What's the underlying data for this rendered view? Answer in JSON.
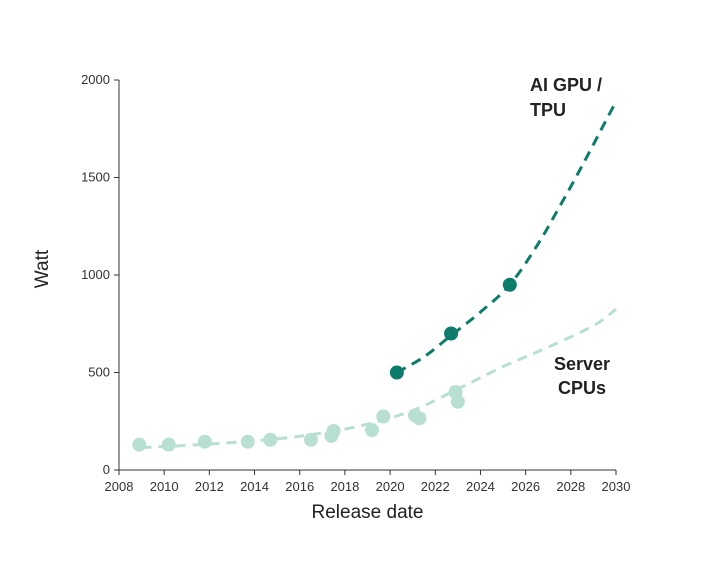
{
  "chart_data": {
    "type": "scatter",
    "title": "",
    "xlabel": "Release date",
    "ylabel": "Watt",
    "xlim": [
      2008,
      2030
    ],
    "ylim": [
      0,
      2000
    ],
    "x_ticks": [
      2008,
      2010,
      2012,
      2014,
      2016,
      2018,
      2020,
      2022,
      2024,
      2026,
      2028,
      2030
    ],
    "y_ticks": [
      0,
      500,
      1000,
      1500,
      2000
    ],
    "grid": false,
    "series": [
      {
        "name": "Server CPUs",
        "label_lines": [
          "Server",
          "CPUs"
        ],
        "color": "#b8e0d2",
        "points": [
          [
            2008.9,
            130
          ],
          [
            2010.2,
            130
          ],
          [
            2011.8,
            145
          ],
          [
            2013.7,
            145
          ],
          [
            2014.7,
            155
          ],
          [
            2016.5,
            155
          ],
          [
            2017.4,
            175
          ],
          [
            2017.5,
            200
          ],
          [
            2019.2,
            205
          ],
          [
            2019.7,
            275
          ],
          [
            2021.1,
            280
          ],
          [
            2021.3,
            265
          ],
          [
            2022.9,
            400
          ],
          [
            2023.0,
            350
          ]
        ],
        "trend": [
          [
            2009.0,
            115
          ],
          [
            2012.0,
            133
          ],
          [
            2015.0,
            160
          ],
          [
            2017.0,
            190
          ],
          [
            2019.0,
            235
          ],
          [
            2021.0,
            305
          ],
          [
            2023.0,
            415
          ],
          [
            2025.0,
            530
          ],
          [
            2027.0,
            630
          ],
          [
            2029.0,
            740
          ],
          [
            2030.0,
            825
          ]
        ]
      },
      {
        "name": "AI GPU / TPU",
        "label_lines": [
          "AI GPU /",
          "TPU"
        ],
        "color": "#0e7c6b",
        "points": [
          [
            2020.3,
            500
          ],
          [
            2022.7,
            700
          ],
          [
            2025.3,
            950
          ]
        ],
        "trend": [
          [
            2020.3,
            500
          ],
          [
            2021.5,
            580
          ],
          [
            2022.7,
            690
          ],
          [
            2024.0,
            810
          ],
          [
            2025.3,
            950
          ],
          [
            2026.5,
            1150
          ],
          [
            2027.5,
            1350
          ],
          [
            2028.5,
            1560
          ],
          [
            2029.5,
            1780
          ],
          [
            2030.0,
            1890
          ]
        ]
      }
    ]
  }
}
